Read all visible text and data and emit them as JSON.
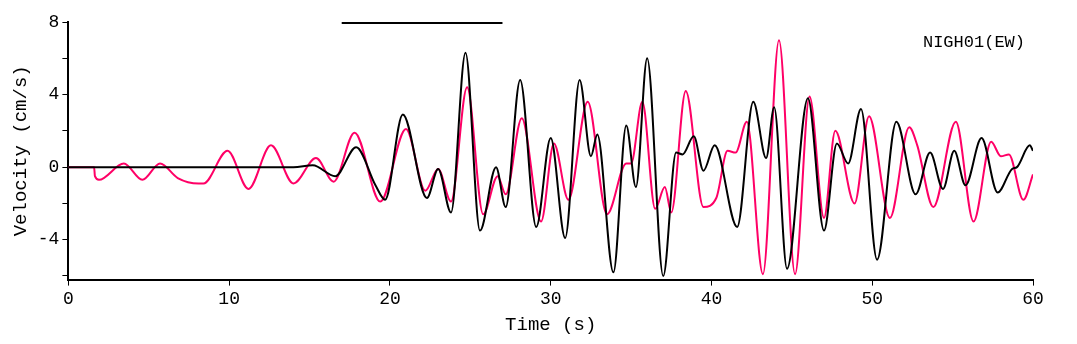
{
  "chart_data": {
    "type": "line",
    "xlabel": "Time (s)",
    "ylabel": "Velocity (cm/s)",
    "annotations": [
      "NIGH01(EW)"
    ],
    "xlim": [
      0,
      60
    ],
    "xticks": [
      0,
      10,
      20,
      30,
      40,
      50,
      60
    ],
    "ylim": [
      -6.2,
      8
    ],
    "yticks": [
      {
        "value": -6,
        "label": null
      },
      -4,
      {
        "value": -2,
        "label": null
      },
      0,
      {
        "value": 2,
        "label": null
      },
      4,
      {
        "value": 6,
        "label": null
      },
      8
    ],
    "grid": false,
    "legend": false,
    "marker": "none",
    "line_style": "solid",
    "series": [
      {
        "color": "#000000",
        "x": [
          17,
          27
        ],
        "values": [
          8,
          8
        ]
      },
      {
        "color": "#000000",
        "x": [
          0,
          14,
          15.2,
          16.6,
          17.9,
          19.1,
          19.7,
          20.8,
          22.3,
          23.0,
          23.8,
          24.7,
          25.6,
          26.6,
          27.2,
          28.1,
          29.1,
          30.0,
          30.9,
          31.8,
          32.5,
          32.9,
          33.9,
          34.7,
          35.3,
          36.0,
          37.0,
          37.8,
          38.2,
          38.9,
          39.5,
          40.2,
          41.6,
          42.6,
          43.4,
          43.9,
          44.7,
          46.0,
          47.0,
          47.8,
          48.5,
          49.3,
          50.3,
          51.5,
          52.7,
          53.6,
          54.4,
          55.1,
          55.8,
          56.8,
          57.8,
          58.7,
          59.0,
          59.8,
          60
        ],
        "values": [
          0,
          0,
          0.1,
          -0.5,
          1.1,
          -1.0,
          -1.8,
          2.9,
          -1.7,
          -0.1,
          -2.5,
          6.3,
          -3.5,
          0,
          -2.2,
          4.8,
          -3.3,
          1.6,
          -3.9,
          4.8,
          0.6,
          1.8,
          -5.8,
          2.3,
          -1.1,
          6.0,
          -6.0,
          0.8,
          0.7,
          1.7,
          -0.2,
          1.2,
          -3.3,
          3.6,
          0.5,
          3.3,
          -5.6,
          3.8,
          -3.5,
          1.3,
          0.2,
          3.2,
          -5.1,
          2.5,
          -1.5,
          0.8,
          -1.2,
          0.9,
          -1.0,
          1.6,
          -1.4,
          -0.1,
          0,
          1.2,
          0.9
        ]
      },
      {
        "color": "#ff0066",
        "x": [
          0,
          1.6,
          1.65,
          1.9,
          3.45,
          4.6,
          5.7,
          6.8,
          8.1,
          8.4,
          9.9,
          11.2,
          12.6,
          14.0,
          15.4,
          16.5,
          17.8,
          19.4,
          21.0,
          22.2,
          23.0,
          23.8,
          24.8,
          25.8,
          26.7,
          27.2,
          28.2,
          29.4,
          30.2,
          31.1,
          32.3,
          33.5,
          34.7,
          35.0,
          35.7,
          36.5,
          37.1,
          37.5,
          38.4,
          39.5,
          40.3,
          41.0,
          41.5,
          42.2,
          43.2,
          44.2,
          45.2,
          46.1,
          47.0,
          47.7,
          48.9,
          49.8,
          51.1,
          52.3,
          52.8,
          53.8,
          55.2,
          56.3,
          57.4,
          58.0,
          58.5,
          59.4,
          60
        ],
        "values": [
          0,
          0,
          -0.5,
          -0.7,
          0.2,
          -0.7,
          0.2,
          -0.6,
          -0.9,
          -0.9,
          0.9,
          -1.2,
          1.2,
          -0.9,
          0.5,
          -0.8,
          1.9,
          -1.9,
          2.1,
          -1.3,
          -0.1,
          -1.9,
          4.4,
          -2.6,
          -0.5,
          -1.5,
          2.7,
          -3.0,
          1.3,
          -1.8,
          3.6,
          -2.6,
          0.2,
          0.2,
          3.6,
          -2.3,
          -1.1,
          -2.5,
          4.2,
          -2.2,
          -1.7,
          0.9,
          0.8,
          2.5,
          -5.9,
          7.0,
          -5.9,
          3.9,
          -2.8,
          2.0,
          -2.0,
          2.8,
          -2.8,
          2.2,
          1.2,
          -2.2,
          2.5,
          -3.0,
          1.4,
          0.6,
          0.7,
          -1.8,
          -0.4
        ]
      }
    ]
  }
}
